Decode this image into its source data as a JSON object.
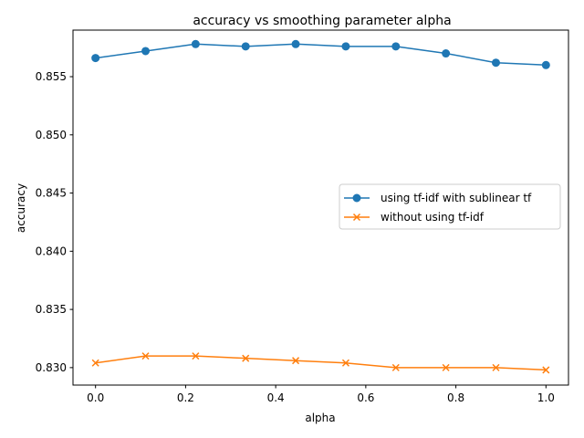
{
  "chart_data": {
    "type": "line",
    "title": "accuracy vs smoothing parameter alpha",
    "xlabel": "alpha",
    "ylabel": "accuracy",
    "xlim": [
      -0.05,
      1.05
    ],
    "ylim": [
      0.8285,
      0.859
    ],
    "xticks": [
      0.0,
      0.2,
      0.4,
      0.6,
      0.8,
      1.0
    ],
    "xtick_labels": [
      "0.0",
      "0.2",
      "0.4",
      "0.6",
      "0.8",
      "1.0"
    ],
    "yticks": [
      0.83,
      0.835,
      0.84,
      0.845,
      0.85,
      0.855
    ],
    "ytick_labels": [
      "0.830",
      "0.835",
      "0.840",
      "0.845",
      "0.850",
      "0.855"
    ],
    "grid": false,
    "legend_position": "center-right",
    "x": [
      0.0,
      0.1111,
      0.2222,
      0.3333,
      0.4444,
      0.5556,
      0.6667,
      0.7778,
      0.8889,
      1.0
    ],
    "series": [
      {
        "name": "using tf-idf with sublinear tf",
        "color": "#1f77b4",
        "marker": "circle",
        "values": [
          0.8566,
          0.8572,
          0.8578,
          0.8576,
          0.8578,
          0.8576,
          0.8576,
          0.857,
          0.8562,
          0.856
        ]
      },
      {
        "name": "without using tf-idf",
        "color": "#ff7f0e",
        "marker": "x",
        "values": [
          0.8304,
          0.831,
          0.831,
          0.8308,
          0.8306,
          0.8304,
          0.83,
          0.83,
          0.83,
          0.8298
        ]
      }
    ]
  }
}
